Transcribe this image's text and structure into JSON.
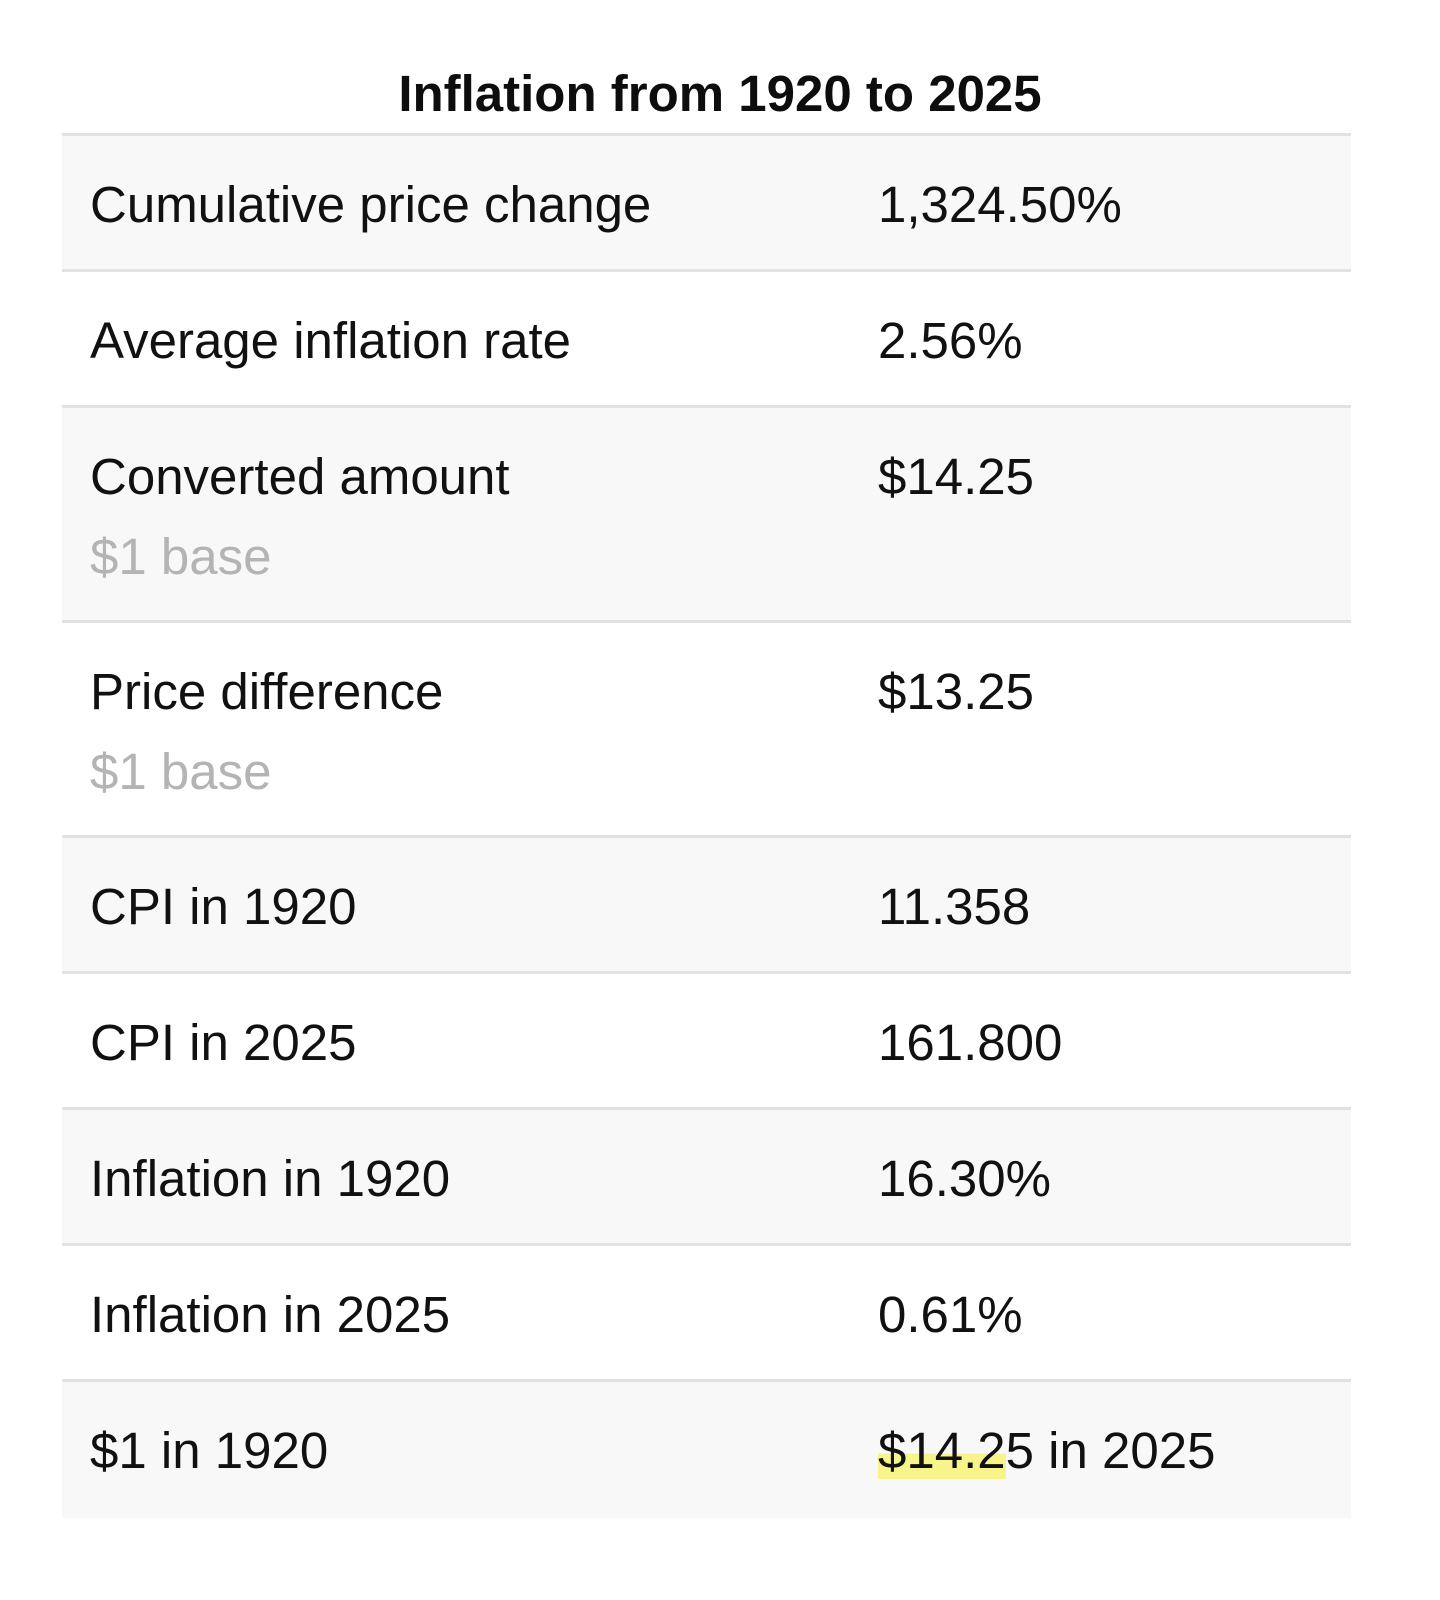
{
  "title": "Inflation from 1920 to 2025",
  "rows": [
    {
      "label": "Cumulative price change",
      "value": "1,324.50%"
    },
    {
      "label": "Average inflation rate",
      "value": "2.56%"
    },
    {
      "label": "Converted amount",
      "sublabel": "$1 base",
      "value": "$14.25"
    },
    {
      "label": "Price difference",
      "sublabel": "$1 base",
      "value": "$13.25"
    },
    {
      "label": "CPI in 1920",
      "value": "11.358"
    },
    {
      "label": "CPI in 2025",
      "value": "161.800"
    },
    {
      "label": "Inflation in 1920",
      "value": "16.30%"
    },
    {
      "label": "Inflation in 2025",
      "value": "0.61%"
    },
    {
      "label": "$1 in 1920",
      "value_highlighted": "$14.2",
      "value_rest": "5 in 2025"
    }
  ],
  "colors": {
    "shaded_row": "#f8f8f8",
    "divider": "#e2e2e2",
    "sublabel": "#b4b4b4",
    "highlight": "#f7f58a"
  }
}
